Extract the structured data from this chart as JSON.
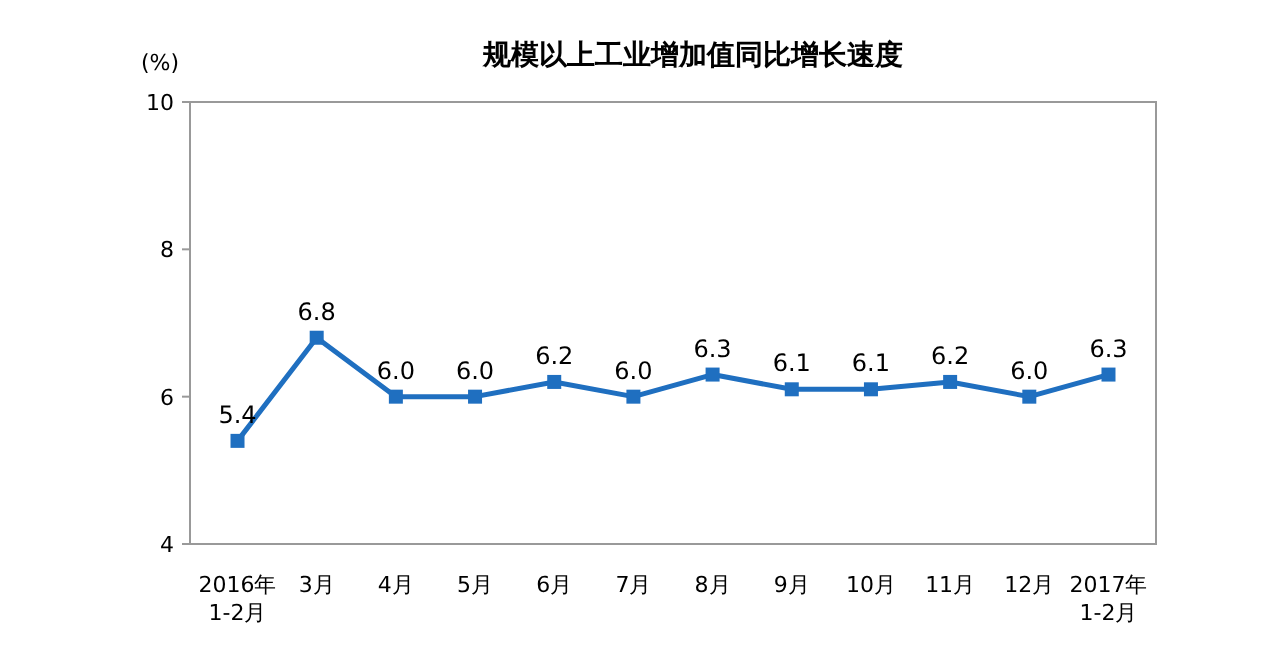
{
  "chart_data": {
    "type": "line",
    "title": "规模以上工业增加值同比增长速度",
    "ylabel": "(%)",
    "categories": [
      "2016年\n1-2月",
      "3月",
      "4月",
      "5月",
      "6月",
      "7月",
      "8月",
      "9月",
      "10月",
      "11月",
      "12月",
      "2017年\n1-2月"
    ],
    "series": [
      {
        "color": "#1f6fc0",
        "values": [
          5.4,
          6.8,
          6.0,
          6.0,
          6.2,
          6.0,
          6.3,
          6.1,
          6.1,
          6.2,
          6.0,
          6.3
        ],
        "value_labels": [
          "5.4",
          "6.8",
          "6.0",
          "6.0",
          "6.2",
          "6.0",
          "6.3",
          "6.1",
          "6.1",
          "6.2",
          "6.0",
          "6.3"
        ]
      }
    ],
    "ylim": [
      4,
      10
    ],
    "yticks": [
      4,
      6,
      8,
      10
    ],
    "marker": "square",
    "line_style": "solid",
    "grid": false
  }
}
